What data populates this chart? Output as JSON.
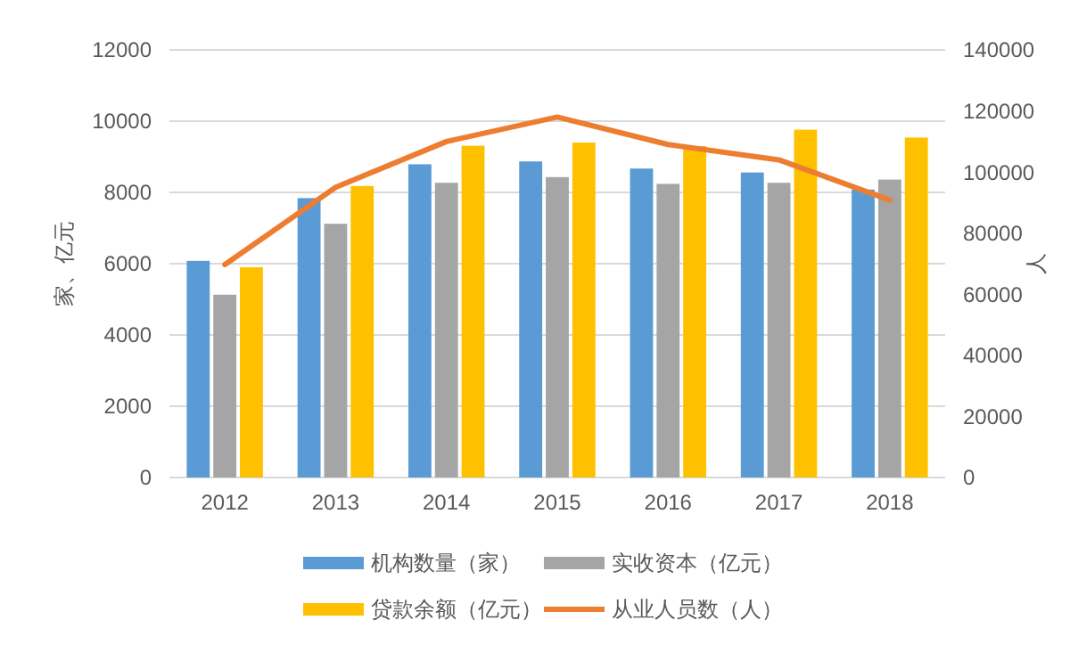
{
  "chart_data": {
    "type": "bar",
    "ylabel": "家、亿元",
    "y2label": "人",
    "categories": [
      "2012",
      "2013",
      "2014",
      "2015",
      "2016",
      "2017",
      "2018"
    ],
    "series": [
      {
        "name": "机构数量（家）",
        "color": "#5b9bd5",
        "values": [
          6080,
          7840,
          8790,
          8870,
          8670,
          8560,
          8080
        ]
      },
      {
        "name": "实收资本（亿元）",
        "color": "#a5a5a5",
        "values": [
          5130,
          7120,
          8270,
          8430,
          8240,
          8270,
          8360
        ]
      },
      {
        "name": "贷款余额（亿元）",
        "color": "#ffc000",
        "values": [
          5900,
          8180,
          9310,
          9400,
          9300,
          9760,
          9540
        ]
      },
      {
        "name": "从业人员数（人）",
        "color": "#ed7d31",
        "type": "line",
        "axis": "y2",
        "values": [
          69700,
          95000,
          110000,
          118000,
          109000,
          104000,
          90800
        ]
      }
    ],
    "ylim": [
      0,
      12000
    ],
    "yticks": [
      0,
      2000,
      4000,
      6000,
      8000,
      10000,
      12000
    ],
    "y2lim": [
      0,
      140000
    ],
    "y2ticks": [
      0,
      20000,
      40000,
      60000,
      80000,
      100000,
      120000,
      140000
    ],
    "grid": "y",
    "legend": "bottom",
    "marker": "none",
    "line_style": "solid"
  }
}
